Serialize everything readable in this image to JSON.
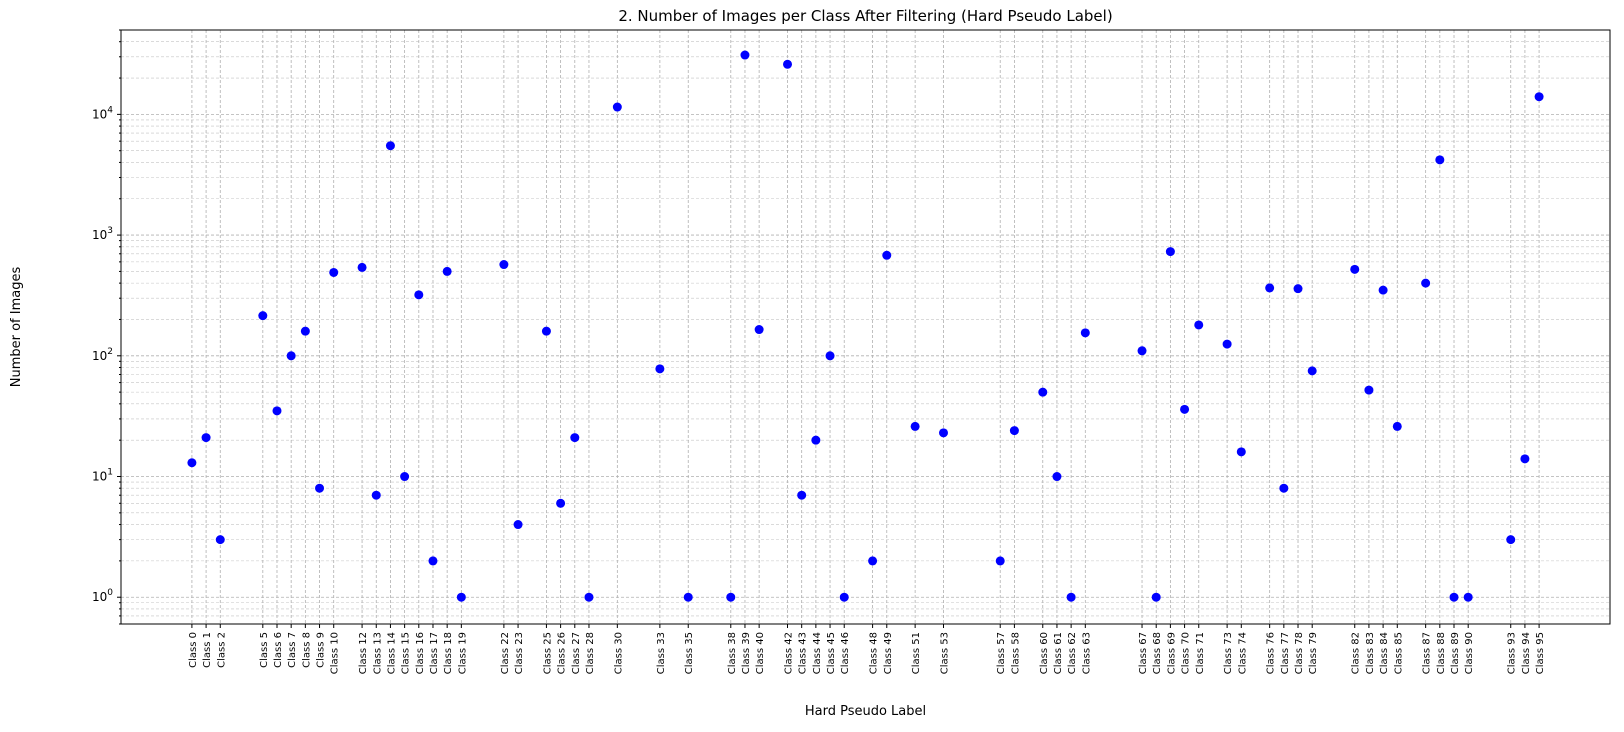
{
  "chart_data": {
    "type": "scatter",
    "title": "2. Number of Images per Class After Filtering (Hard Pseudo Label)",
    "xlabel": "Hard Pseudo Label",
    "ylabel": "Number of Images",
    "yscale": "log",
    "ylim": [
      0.6,
      50000
    ],
    "grid": "on (major and minor, dashed)",
    "marker_color": "#0000ff",
    "categories": [
      "Class 0",
      "Class 1",
      "Class 2",
      "Class 5",
      "Class 6",
      "Class 7",
      "Class 8",
      "Class 9",
      "Class 10",
      "Class 12",
      "Class 13",
      "Class 14",
      "Class 15",
      "Class 16",
      "Class 17",
      "Class 18",
      "Class 19",
      "Class 22",
      "Class 23",
      "Class 25",
      "Class 26",
      "Class 27",
      "Class 28",
      "Class 30",
      "Class 33",
      "Class 35",
      "Class 38",
      "Class 39",
      "Class 40",
      "Class 42",
      "Class 43",
      "Class 44",
      "Class 45",
      "Class 46",
      "Class 48",
      "Class 49",
      "Class 51",
      "Class 53",
      "Class 57",
      "Class 58",
      "Class 60",
      "Class 61",
      "Class 62",
      "Class 63",
      "Class 67",
      "Class 68",
      "Class 69",
      "Class 70",
      "Class 71",
      "Class 73",
      "Class 74",
      "Class 76",
      "Class 77",
      "Class 78",
      "Class 79",
      "Class 82",
      "Class 83",
      "Class 84",
      "Class 85",
      "Class 87",
      "Class 88",
      "Class 89",
      "Class 90",
      "Class 93",
      "Class 94",
      "Class 95"
    ],
    "x": [
      0,
      1,
      2,
      5,
      6,
      7,
      8,
      9,
      10,
      12,
      13,
      14,
      15,
      16,
      17,
      18,
      19,
      22,
      23,
      25,
      26,
      27,
      28,
      30,
      33,
      35,
      38,
      39,
      40,
      42,
      43,
      44,
      45,
      46,
      48,
      49,
      51,
      53,
      57,
      58,
      60,
      61,
      62,
      63,
      67,
      68,
      69,
      70,
      71,
      73,
      74,
      76,
      77,
      78,
      79,
      82,
      83,
      84,
      85,
      87,
      88,
      89,
      90,
      93,
      94,
      95
    ],
    "values": [
      13,
      21,
      3,
      215,
      35,
      100,
      160,
      8,
      490,
      540,
      7,
      5500,
      10,
      320,
      2,
      500,
      1,
      570,
      4,
      160,
      6,
      21,
      1,
      11500,
      78,
      1,
      1,
      31000,
      165,
      26000,
      7,
      20,
      100,
      1,
      2,
      680,
      26,
      23,
      2,
      24,
      50,
      10,
      1,
      155,
      110,
      1,
      730,
      36,
      180,
      125,
      16,
      365,
      8,
      360,
      75,
      520,
      52,
      350,
      26,
      400,
      4200,
      1,
      1,
      3,
      14,
      14000
    ],
    "y_tick_labels": [
      "10^0",
      "10^1",
      "10^2",
      "10^3",
      "10^4"
    ]
  }
}
